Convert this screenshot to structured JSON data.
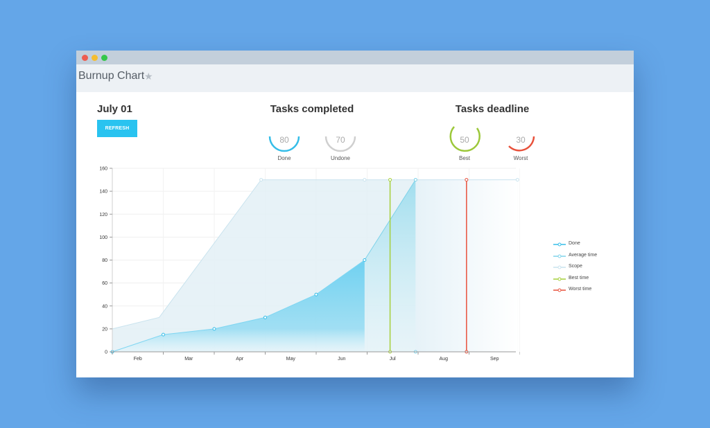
{
  "window": {
    "title": "Burnup Chart",
    "star_icon": "star-icon"
  },
  "header": {
    "date": "July 01",
    "refresh_label": "REFRESH",
    "tasks_completed_title": "Tasks completed",
    "tasks_deadline_title": "Tasks deadline"
  },
  "gauges": [
    {
      "value": "80",
      "label": "Done",
      "color": "#35bde8"
    },
    {
      "value": "70",
      "label": "Undone",
      "color": "#cfcfcf"
    },
    {
      "value": "50",
      "label": "Best",
      "color": "#9cc83a"
    },
    {
      "value": "30",
      "label": "Worst",
      "color": "#e8513b"
    }
  ],
  "chart_data": {
    "type": "area",
    "categories": [
      "Feb",
      "Mar",
      "Apr",
      "May",
      "Jun",
      "Jul",
      "Aug",
      "Sep"
    ],
    "ylim": [
      0,
      160
    ],
    "yticks": [
      0,
      20,
      40,
      60,
      80,
      100,
      120,
      140,
      160
    ],
    "series": [
      {
        "name": "Done",
        "color": "#35bde8",
        "points": [
          [
            0,
            0
          ],
          [
            1,
            15
          ],
          [
            2,
            20
          ],
          [
            3,
            30
          ],
          [
            4,
            50
          ],
          [
            4.95,
            80
          ]
        ]
      },
      {
        "name": "Average time",
        "color": "#7fd3ea",
        "points": [
          [
            4.95,
            80
          ],
          [
            5.95,
            150
          ]
        ]
      },
      {
        "name": "Scope",
        "color": "#c9e3ee",
        "points": [
          [
            0,
            20
          ],
          [
            0.92,
            30
          ],
          [
            2.92,
            150
          ],
          [
            4.95,
            150
          ],
          [
            5.95,
            150
          ],
          [
            7.95,
            150
          ]
        ]
      },
      {
        "name": "Best time",
        "color": "#a6cf3a",
        "x": 5.45
      },
      {
        "name": "Worst time",
        "color": "#e8513b",
        "x": 6.95
      }
    ],
    "legend_position": "right"
  }
}
